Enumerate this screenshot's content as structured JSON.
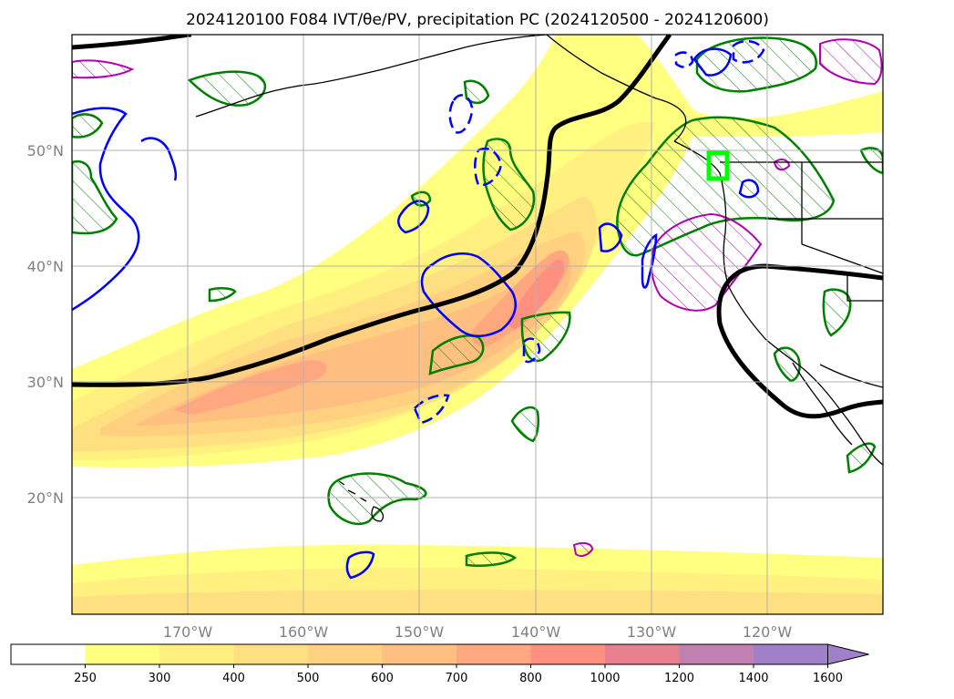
{
  "title": "2024120100 F084 IVT/θe/PV, precipitation PC (2024120500 - 2024120600)",
  "map": {
    "lon_range": [
      -180,
      -110
    ],
    "lat_range": [
      10,
      60
    ],
    "grid": true,
    "lat_labels": [
      "50°N",
      "40°N",
      "30°N",
      "20°N"
    ],
    "lon_labels": [
      "170°W",
      "160°W",
      "150°W",
      "140°W",
      "130°W",
      "120°W"
    ],
    "highlight_box_color": "#00ff00"
  },
  "colorbar": {
    "levels": [
      "250",
      "300",
      "400",
      "500",
      "600",
      "700",
      "800",
      "1000",
      "1200",
      "1400",
      "1600"
    ],
    "colors": [
      "#ffffff",
      "#ffff80",
      "#fff080",
      "#ffe080",
      "#ffd080",
      "#ffbf80",
      "#ffa880",
      "#ff9080",
      "#e88090",
      "#c080b0",
      "#a080c8"
    ],
    "extend": "max"
  },
  "contour_colors": {
    "theta_e_line": "#000000",
    "green": "#008000",
    "blue": "#0000ff",
    "magenta": "#b000b0"
  }
}
